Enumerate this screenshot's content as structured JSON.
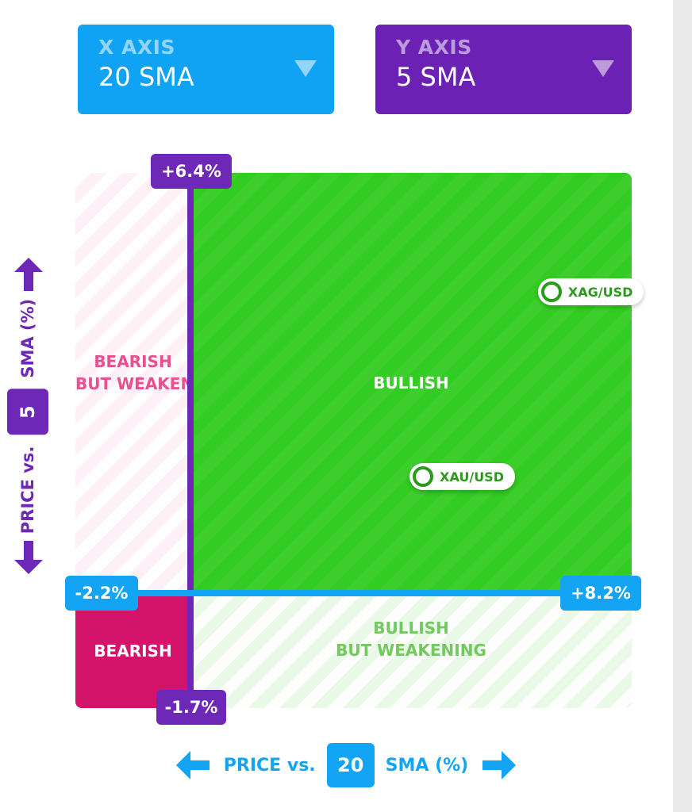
{
  "x_axis_selector": {
    "label": "X AXIS",
    "value": "20 SMA"
  },
  "y_axis_selector": {
    "label": "Y AXIS",
    "value": "5 SMA"
  },
  "chart_data": {
    "type": "scatter",
    "xlabel": {
      "prefix": "PRICE vs.",
      "period": "20",
      "suffix": "SMA (%)"
    },
    "ylabel": {
      "prefix": "PRICE vs.",
      "period": "5",
      "suffix": "SMA (%)"
    },
    "xlim": [
      -2.2,
      8.2
    ],
    "ylim": [
      -1.7,
      6.4
    ],
    "xlim_labels": [
      "-2.2%",
      "+8.2%"
    ],
    "ylim_labels": [
      "-1.7%",
      "+6.4%"
    ],
    "quadrants": {
      "top_left": [
        "BEARISH",
        "BUT WEAKENING"
      ],
      "top_right": [
        "BULLISH"
      ],
      "bottom_left": [
        "BEARISH"
      ],
      "bottom_right": [
        "BULLISH",
        "BUT WEAKENING"
      ]
    },
    "quadrant_colors": {
      "bullish": "#33cc22",
      "bearish": "#d4136a",
      "bearish_weakening": "#fdf0f6",
      "bullish_weakening": "#eaf8e7"
    },
    "points": [
      {
        "label": "XAG/USD",
        "x": 6.7,
        "y": 4.6
      },
      {
        "label": "XAU/USD",
        "x": 4.3,
        "y": 1.8
      }
    ]
  }
}
